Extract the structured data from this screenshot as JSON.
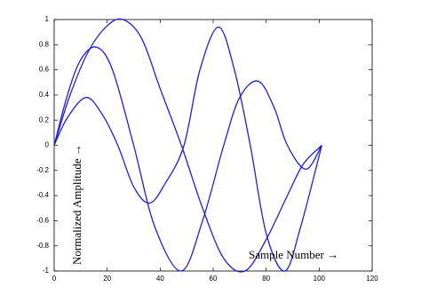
{
  "chart_data": {
    "type": "line",
    "xlabel": "Sample Number →",
    "ylabel": "Normalized Amplitude →",
    "xlim": [
      0,
      120
    ],
    "xticks": [
      0,
      20,
      40,
      60,
      80,
      100,
      120
    ],
    "ylim": [
      -1,
      1
    ],
    "yticks": [
      -1,
      -0.8,
      -0.6,
      -0.4,
      -0.2,
      0,
      0.2,
      0.4,
      0.6,
      0.8,
      1
    ],
    "grid": false,
    "series": [
      {
        "color": "#1f1fd6",
        "x": [
          0,
          5,
          12,
          18,
          24,
          30,
          36,
          42,
          49,
          55,
          62,
          68,
          74,
          80,
          87,
          93,
          101
        ],
        "values": [
          0,
          0.22,
          0.38,
          0.25,
          0,
          -0.33,
          -0.46,
          -0.3,
          0,
          0.6,
          0.94,
          0.6,
          0,
          -0.7,
          -1,
          -0.65,
          0
        ]
      },
      {
        "color": "#1f1fd6",
        "x": [
          0,
          5,
          10,
          16,
          22,
          30,
          38,
          48,
          56,
          64,
          70,
          77,
          83,
          88,
          95,
          101
        ],
        "values": [
          0,
          0.4,
          0.68,
          0.78,
          0.6,
          0,
          -0.65,
          -1,
          -0.6,
          0,
          0.38,
          0.51,
          0.3,
          0,
          -0.19,
          0
        ]
      },
      {
        "color": "#1f1fd6",
        "x": [
          0,
          6,
          13,
          20,
          26,
          33,
          40,
          48,
          56,
          64,
          72,
          80,
          88,
          94,
          101
        ],
        "values": [
          0,
          0.4,
          0.75,
          0.95,
          1,
          0.85,
          0.45,
          0,
          -0.5,
          -0.9,
          -1,
          -0.75,
          -0.4,
          -0.15,
          0
        ]
      }
    ]
  }
}
